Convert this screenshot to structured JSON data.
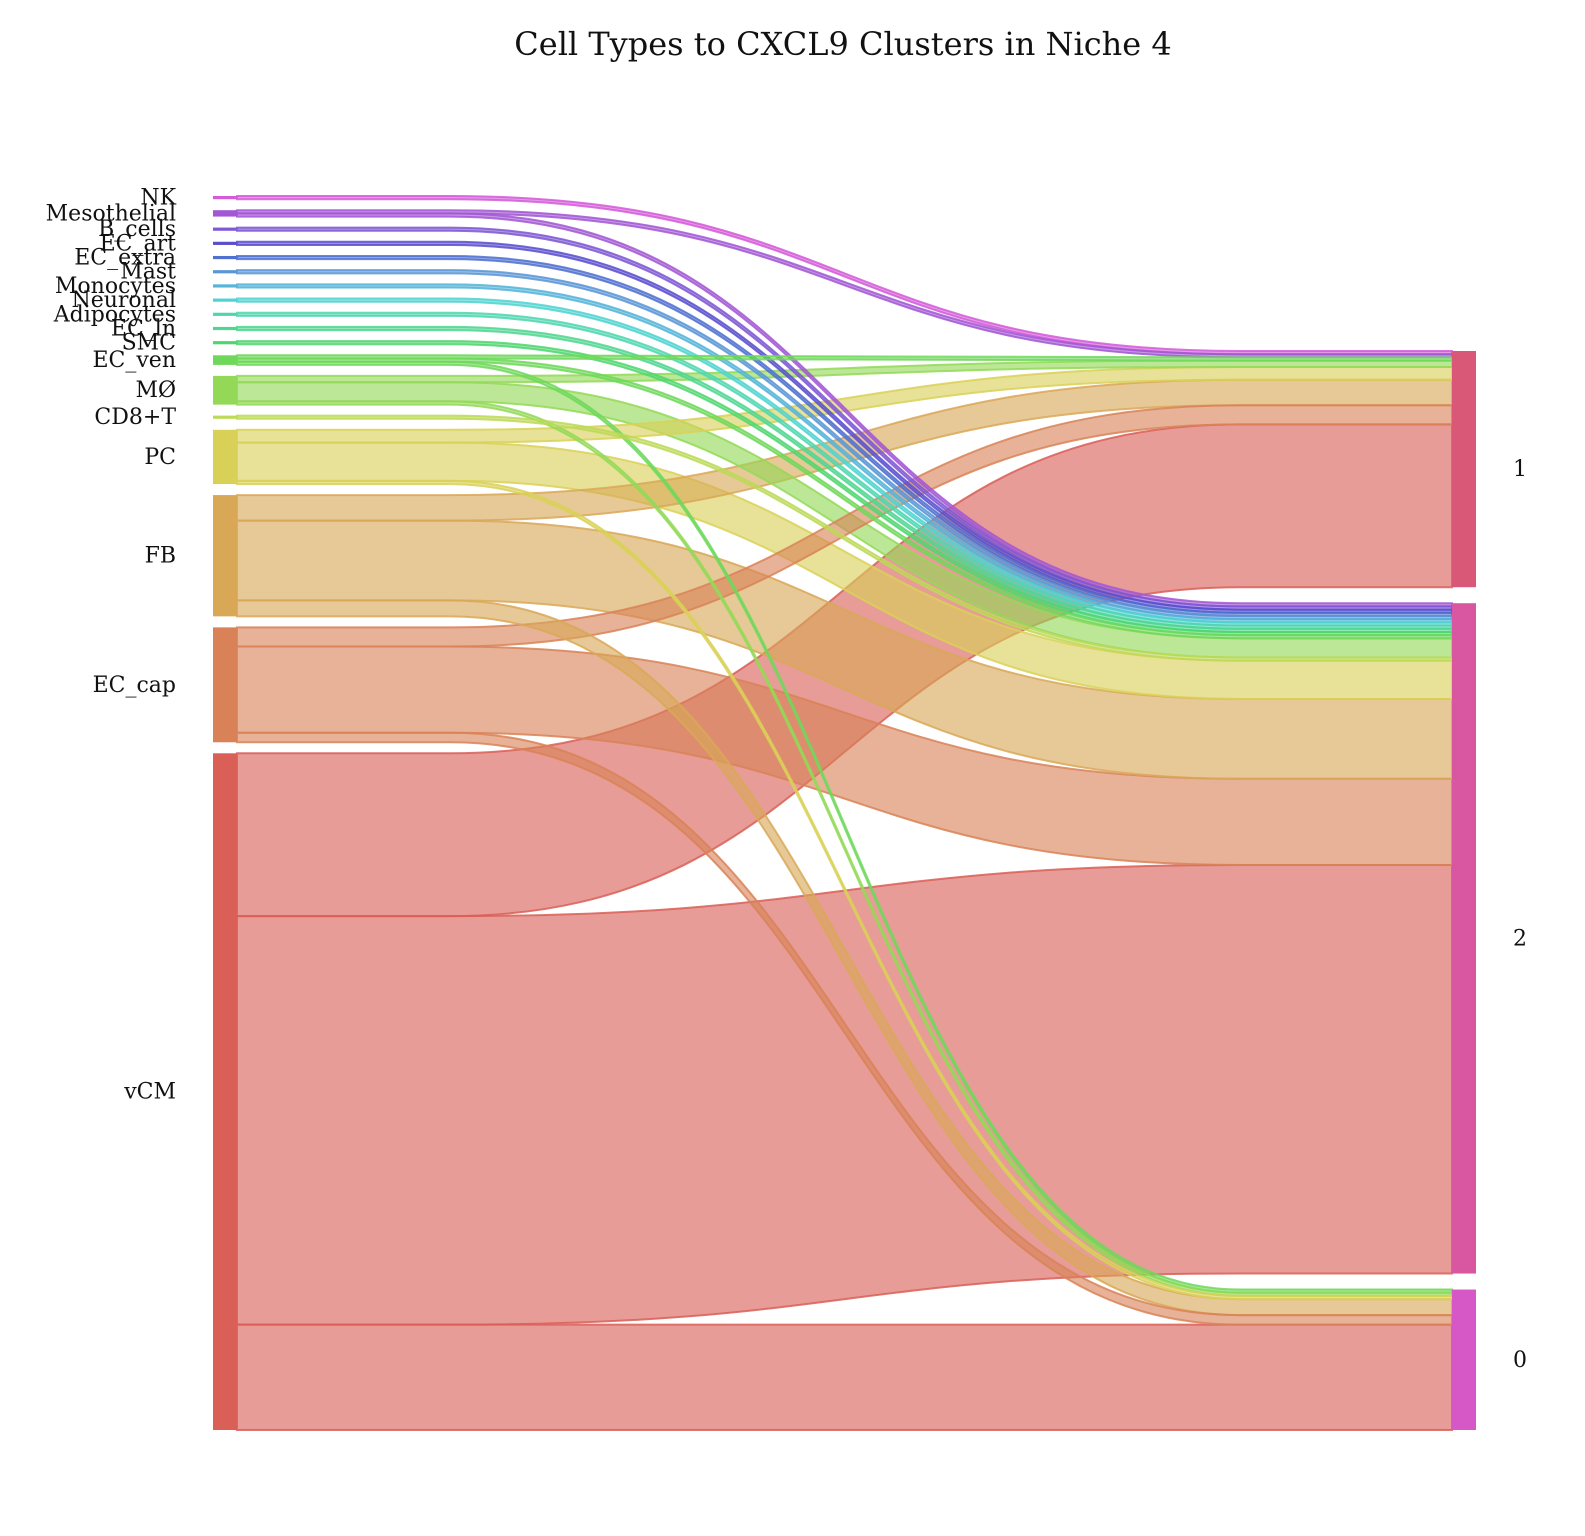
{
  "chart_data": {
    "type": "sankey",
    "title": "Cell Types to CXCL9 Clusters in Niche 4",
    "sources": [
      {
        "name": "NK",
        "color": "#d45bd9"
      },
      {
        "name": "Mesothelial",
        "color": "#a257d4"
      },
      {
        "name": "B_cells",
        "color": "#7e57d4"
      },
      {
        "name": "EC_art",
        "color": "#5b4fcf"
      },
      {
        "name": "EC_extra",
        "color": "#4f70d0"
      },
      {
        "name": "Mast",
        "color": "#5a96d6"
      },
      {
        "name": "Monocytes",
        "color": "#55b4d8"
      },
      {
        "name": "Neuronal",
        "color": "#4fd3d0"
      },
      {
        "name": "Adipocytes",
        "color": "#4fd6b0"
      },
      {
        "name": "EC_ln",
        "color": "#4fd690"
      },
      {
        "name": "SMC",
        "color": "#4fd670"
      },
      {
        "name": "EC_ven",
        "color": "#6fd85a"
      },
      {
        "name": "MØ",
        "color": "#93d957"
      },
      {
        "name": "CD8+T",
        "color": "#bcd957"
      },
      {
        "name": "PC",
        "color": "#d9d157"
      },
      {
        "name": "FB",
        "color": "#d9a857"
      },
      {
        "name": "EC_cap",
        "color": "#d98257"
      },
      {
        "name": "vCM",
        "color": "#d95f57"
      }
    ],
    "targets": [
      {
        "name": "1",
        "color": "#d95777"
      },
      {
        "name": "2",
        "color": "#d957a0"
      },
      {
        "name": "0",
        "color": "#d657c6"
      }
    ],
    "flows": [
      {
        "source": "NK",
        "target": "1",
        "value": 1
      },
      {
        "source": "Mesothelial",
        "target": "1",
        "value": 1
      },
      {
        "source": "Mesothelial",
        "target": "2",
        "value": 1
      },
      {
        "source": "B_cells",
        "target": "2",
        "value": 1
      },
      {
        "source": "EC_art",
        "target": "2",
        "value": 1
      },
      {
        "source": "EC_extra",
        "target": "2",
        "value": 1
      },
      {
        "source": "Mast",
        "target": "2",
        "value": 1
      },
      {
        "source": "Monocytes",
        "target": "2",
        "value": 1
      },
      {
        "source": "Neuronal",
        "target": "2",
        "value": 1
      },
      {
        "source": "Adipocytes",
        "target": "2",
        "value": 1
      },
      {
        "source": "EC_ln",
        "target": "2",
        "value": 1
      },
      {
        "source": "SMC",
        "target": "2",
        "value": 1
      },
      {
        "source": "EC_ven",
        "target": "1",
        "value": 1
      },
      {
        "source": "EC_ven",
        "target": "2",
        "value": 1
      },
      {
        "source": "EC_ven",
        "target": "0",
        "value": 1
      },
      {
        "source": "MØ",
        "target": "1",
        "value": 2
      },
      {
        "source": "MØ",
        "target": "2",
        "value": 6
      },
      {
        "source": "MØ",
        "target": "0",
        "value": 1
      },
      {
        "source": "CD8+T",
        "target": "2",
        "value": 1
      },
      {
        "source": "PC",
        "target": "1",
        "value": 4
      },
      {
        "source": "PC",
        "target": "2",
        "value": 12
      },
      {
        "source": "PC",
        "target": "0",
        "value": 1
      },
      {
        "source": "FB",
        "target": "1",
        "value": 8
      },
      {
        "source": "FB",
        "target": "2",
        "value": 25
      },
      {
        "source": "FB",
        "target": "0",
        "value": 5
      },
      {
        "source": "EC_cap",
        "target": "1",
        "value": 6
      },
      {
        "source": "EC_cap",
        "target": "2",
        "value": 27
      },
      {
        "source": "EC_cap",
        "target": "0",
        "value": 3
      },
      {
        "source": "vCM",
        "target": "1",
        "value": 51
      },
      {
        "source": "vCM",
        "target": "2",
        "value": 128
      },
      {
        "source": "vCM",
        "target": "0",
        "value": 33
      }
    ]
  }
}
